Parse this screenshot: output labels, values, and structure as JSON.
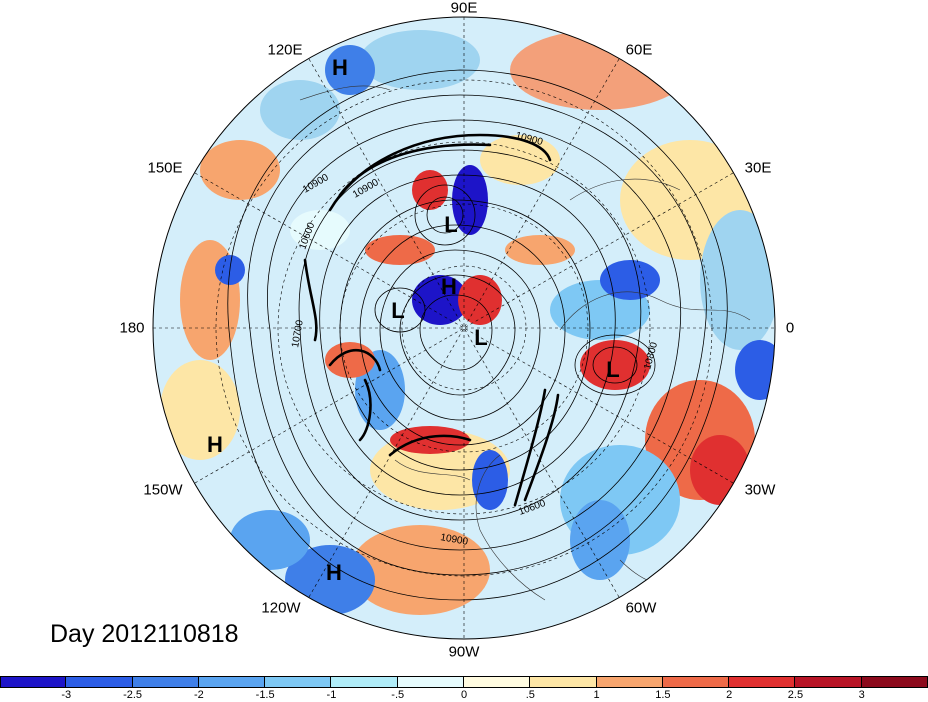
{
  "lon_labels": [
    "90E",
    "60E",
    "30E",
    "0",
    "30W",
    "60W",
    "90W",
    "120W",
    "150W",
    "180",
    "150E",
    "120E"
  ],
  "pressure_centers": [
    {
      "id": "h-1",
      "text": "H"
    },
    {
      "id": "l-1",
      "text": "L"
    },
    {
      "id": "h-2",
      "text": "H"
    },
    {
      "id": "l-2",
      "text": "L"
    },
    {
      "id": "l-3",
      "text": "L"
    },
    {
      "id": "l-4",
      "text": "L"
    },
    {
      "id": "h-3",
      "text": "H"
    },
    {
      "id": "h-4",
      "text": "H"
    }
  ],
  "contour_labels": [
    "10900",
    "10900",
    "10900",
    "10600",
    "10700",
    "10800",
    "10600",
    "10900"
  ],
  "date_label": "Day 2012110818",
  "colorbar": {
    "ticks": [
      "-3",
      "-2.5",
      "-2",
      "-1.5",
      "-1",
      "-.5",
      "0",
      ".5",
      "1",
      "1.5",
      "2",
      "2.5",
      "3"
    ],
    "colors": [
      "#1d14c8",
      "#2c5de6",
      "#3f7fe8",
      "#5aa4f0",
      "#7ec8f4",
      "#b0ecf8",
      "#e6fbfd",
      "#fffbe0",
      "#fde6a6",
      "#f7a56e",
      "#ee6a48",
      "#e03030",
      "#b81426",
      "#8c0a1c"
    ]
  }
}
